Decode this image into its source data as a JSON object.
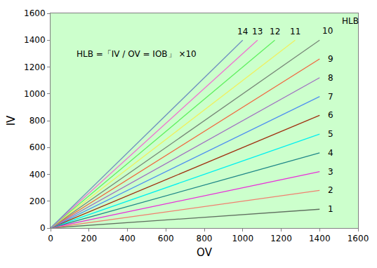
{
  "chart_data": {
    "type": "line",
    "annotations": [
      "HLB =「IV / OV = IOB」 ×10",
      "HLB"
    ],
    "xlabel": "OV",
    "ylabel": "IV",
    "xlim": [
      0,
      1600
    ],
    "ylim": [
      0,
      1600
    ],
    "xticks": [
      0,
      200,
      400,
      600,
      800,
      1000,
      1200,
      1400,
      1600
    ],
    "yticks": [
      0,
      200,
      400,
      600,
      800,
      1000,
      1200,
      1400,
      1600
    ],
    "grid": false,
    "series": [
      {
        "name": "1",
        "color": "#607060",
        "x": [
          0,
          1400
        ],
        "values": [
          0,
          140
        ]
      },
      {
        "name": "2",
        "color": "#f08070",
        "x": [
          0,
          1400
        ],
        "values": [
          0,
          280
        ]
      },
      {
        "name": "3",
        "color": "#e830d8",
        "x": [
          0,
          1400
        ],
        "values": [
          0,
          420
        ]
      },
      {
        "name": "4",
        "color": "#208888",
        "x": [
          0,
          1400
        ],
        "values": [
          0,
          560
        ]
      },
      {
        "name": "5",
        "color": "#00f0f0",
        "x": [
          0,
          1400
        ],
        "values": [
          0,
          700
        ]
      },
      {
        "name": "6",
        "color": "#a03010",
        "x": [
          0,
          1400
        ],
        "values": [
          0,
          840
        ]
      },
      {
        "name": "7",
        "color": "#5090f0",
        "x": [
          0,
          1400
        ],
        "values": [
          0,
          980
        ]
      },
      {
        "name": "8",
        "color": "#a070c0",
        "x": [
          0,
          1400
        ],
        "values": [
          0,
          1120
        ]
      },
      {
        "name": "9",
        "color": "#f06840",
        "x": [
          0,
          1400
        ],
        "values": [
          0,
          1260
        ]
      },
      {
        "name": "10",
        "color": "#788878",
        "x": [
          0,
          1400
        ],
        "values": [
          0,
          1400
        ]
      },
      {
        "name": "11",
        "color": "#f0f060",
        "x": [
          0,
          1273
        ],
        "values": [
          0,
          1400
        ]
      },
      {
        "name": "12",
        "color": "#60f060",
        "x": [
          0,
          1167
        ],
        "values": [
          0,
          1400
        ]
      },
      {
        "name": "13",
        "color": "#f070d0",
        "x": [
          0,
          1077
        ],
        "values": [
          0,
          1400
        ]
      },
      {
        "name": "14",
        "color": "#7090c0",
        "x": [
          0,
          1000
        ],
        "values": [
          0,
          1400
        ]
      }
    ]
  }
}
